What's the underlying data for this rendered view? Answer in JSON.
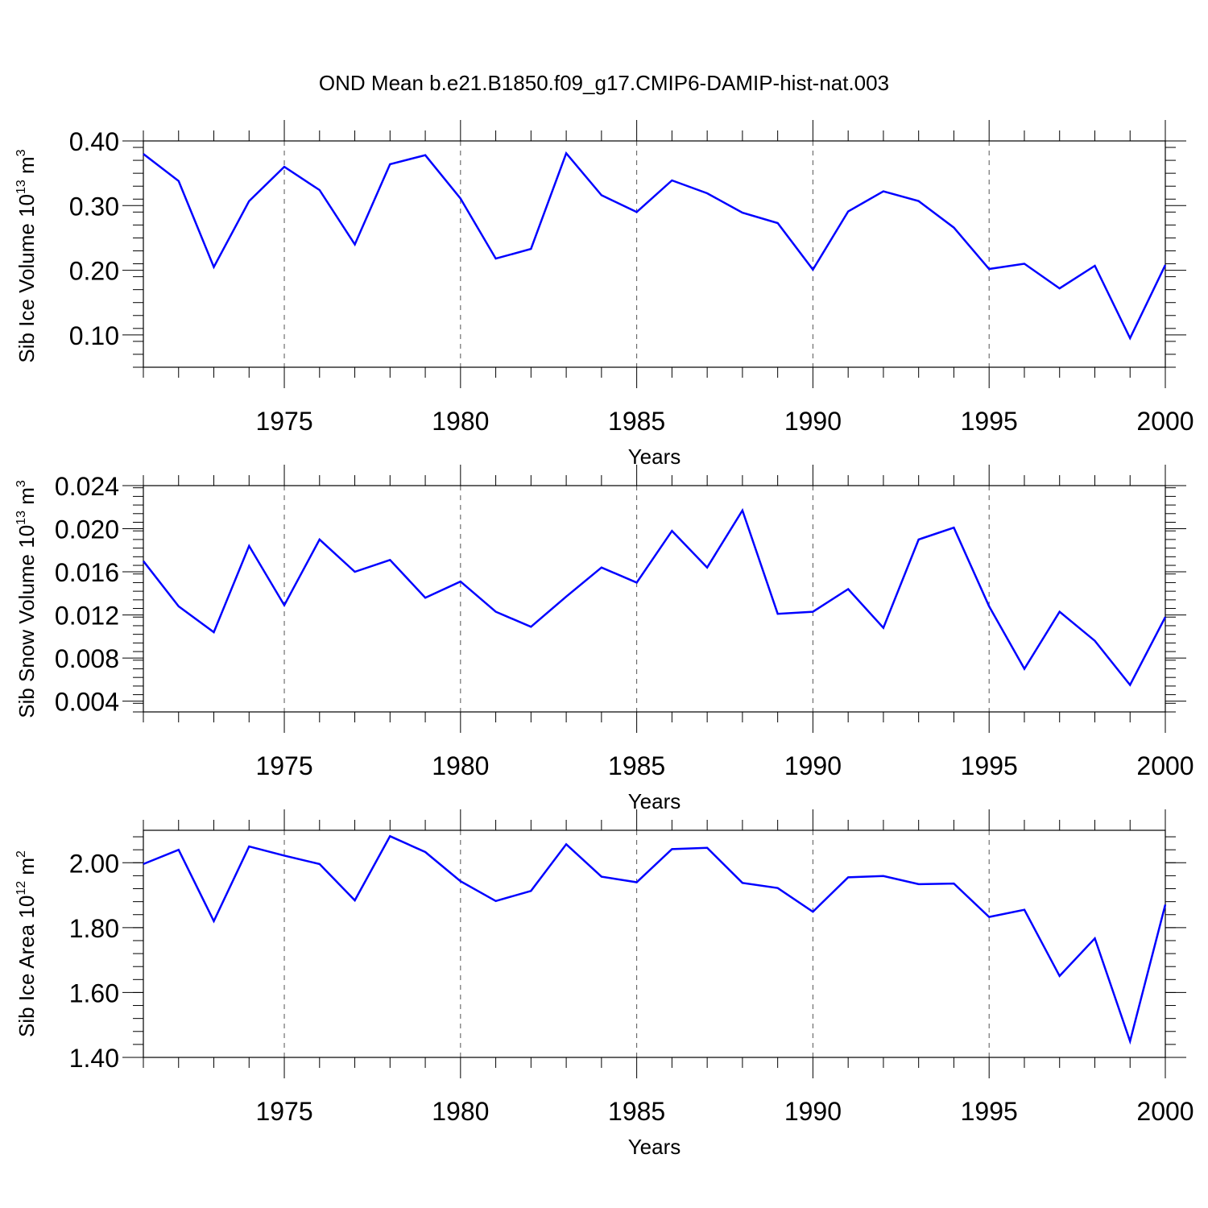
{
  "title": "OND Mean b.e21.B1850.f09_g17.CMIP6-DAMIP-hist-nat.003",
  "chart_data": [
    {
      "type": "line",
      "xlabel": "Years",
      "ylabel": "Sib Ice Volume 10",
      "ylabel_exp": "13",
      "ylabel_unit": " m",
      "ylabel_unit_exp": "3",
      "xlim": [
        1971,
        2000
      ],
      "ylim": [
        0.05,
        0.4
      ],
      "yticks": [
        0.1,
        0.2,
        0.3,
        0.4
      ],
      "ytick_labels": [
        "0.10",
        "0.20",
        "0.30",
        "0.40"
      ],
      "xticks": [
        1975,
        1980,
        1985,
        1990,
        1995,
        2000
      ],
      "xtick_labels": [
        "1975",
        "1980",
        "1985",
        "1990",
        "1995",
        "2000"
      ],
      "color": "#0000ff",
      "x": [
        1971,
        1972,
        1973,
        1974,
        1975,
        1976,
        1977,
        1978,
        1979,
        1980,
        1981,
        1982,
        1983,
        1984,
        1985,
        1986,
        1987,
        1988,
        1989,
        1990,
        1991,
        1992,
        1993,
        1994,
        1995,
        1996,
        1997,
        1998,
        1999,
        2000
      ],
      "values": [
        0.38,
        0.338,
        0.205,
        0.307,
        0.36,
        0.324,
        0.24,
        0.364,
        0.378,
        0.311,
        0.218,
        0.233,
        0.381,
        0.316,
        0.29,
        0.339,
        0.319,
        0.289,
        0.273,
        0.201,
        0.291,
        0.322,
        0.307,
        0.266,
        0.202,
        0.21,
        0.172,
        0.207,
        0.095,
        0.208
      ]
    },
    {
      "type": "line",
      "xlabel": "Years",
      "ylabel": "Sib Snow Volume 10",
      "ylabel_exp": "13",
      "ylabel_unit": " m",
      "ylabel_unit_exp": "3",
      "xlim": [
        1971,
        2000
      ],
      "ylim": [
        0.003,
        0.024
      ],
      "yticks": [
        0.004,
        0.008,
        0.012,
        0.016,
        0.02,
        0.024
      ],
      "ytick_labels": [
        "0.004",
        "0.008",
        "0.012",
        "0.016",
        "0.020",
        "0.024"
      ],
      "xticks": [
        1975,
        1980,
        1985,
        1990,
        1995,
        2000
      ],
      "xtick_labels": [
        "1975",
        "1980",
        "1985",
        "1990",
        "1995",
        "2000"
      ],
      "color": "#0000ff",
      "x": [
        1971,
        1972,
        1973,
        1974,
        1975,
        1976,
        1977,
        1978,
        1979,
        1980,
        1981,
        1982,
        1983,
        1984,
        1985,
        1986,
        1987,
        1988,
        1989,
        1990,
        1991,
        1992,
        1993,
        1994,
        1995,
        1996,
        1997,
        1998,
        1999,
        2000
      ],
      "values": [
        0.017,
        0.0128,
        0.0104,
        0.0184,
        0.0129,
        0.019,
        0.016,
        0.0171,
        0.0136,
        0.0151,
        0.0123,
        0.0109,
        0.0137,
        0.0164,
        0.015,
        0.0198,
        0.0164,
        0.0217,
        0.0121,
        0.0123,
        0.0144,
        0.0108,
        0.019,
        0.0201,
        0.0128,
        0.007,
        0.0123,
        0.0096,
        0.0055,
        0.0118
      ]
    },
    {
      "type": "line",
      "xlabel": "Years",
      "ylabel": "Sib Ice Area 10",
      "ylabel_exp": "12",
      "ylabel_unit": " m",
      "ylabel_unit_exp": "2",
      "xlim": [
        1971,
        2000
      ],
      "ylim": [
        1.4,
        2.1
      ],
      "yticks": [
        1.4,
        1.6,
        1.8,
        2.0
      ],
      "ytick_labels": [
        "1.40",
        "1.60",
        "1.80",
        "2.00"
      ],
      "xticks": [
        1975,
        1980,
        1985,
        1990,
        1995,
        2000
      ],
      "xtick_labels": [
        "1975",
        "1980",
        "1985",
        "1990",
        "1995",
        "2000"
      ],
      "color": "#0000ff",
      "x": [
        1971,
        1972,
        1973,
        1974,
        1975,
        1976,
        1977,
        1978,
        1979,
        1980,
        1981,
        1982,
        1983,
        1984,
        1985,
        1986,
        1987,
        1988,
        1989,
        1990,
        1991,
        1992,
        1993,
        1994,
        1995,
        1996,
        1997,
        1998,
        1999,
        2000
      ],
      "values": [
        1.996,
        2.04,
        1.82,
        2.05,
        2.022,
        1.996,
        1.884,
        2.082,
        2.033,
        1.943,
        1.882,
        1.913,
        2.057,
        1.957,
        1.94,
        2.042,
        2.046,
        1.938,
        1.922,
        1.849,
        1.955,
        1.959,
        1.934,
        1.936,
        1.833,
        1.855,
        1.651,
        1.767,
        1.45,
        1.871
      ]
    }
  ]
}
